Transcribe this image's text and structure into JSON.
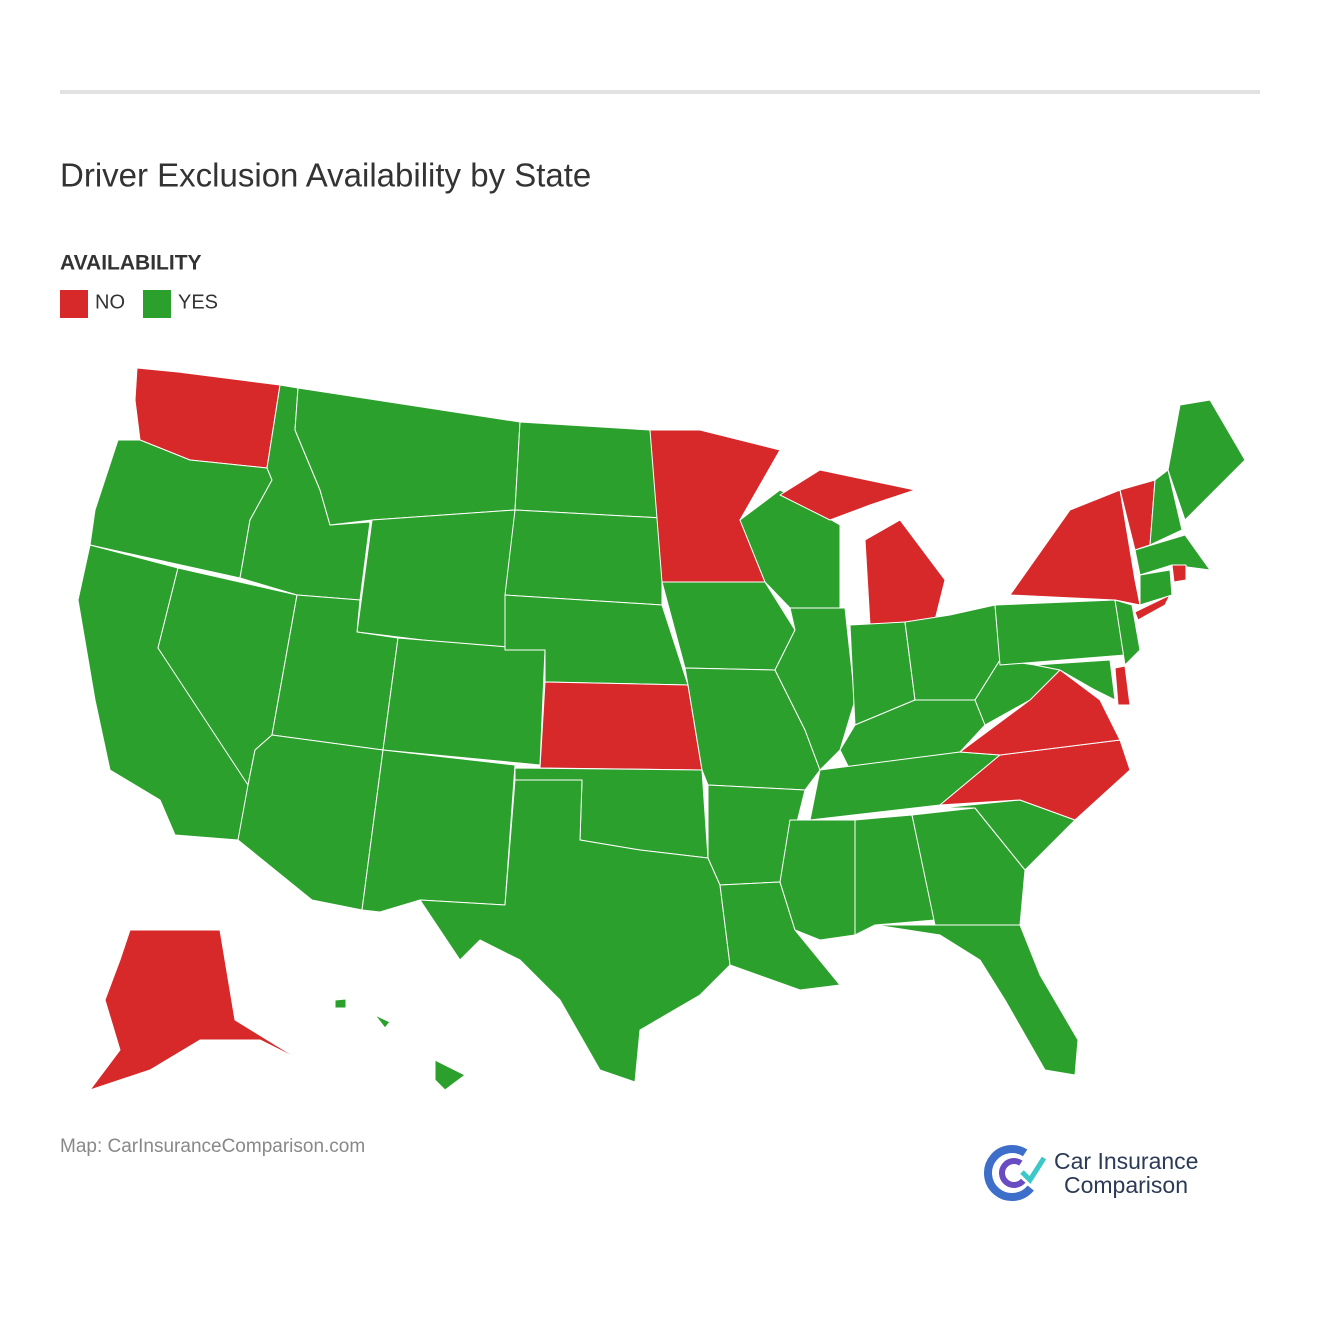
{
  "header": {
    "title": "Driver Exclusion Availability by State"
  },
  "legend": {
    "title": "AVAILABILITY",
    "items": [
      {
        "label": "NO",
        "color": "#d7282a"
      },
      {
        "label": "YES",
        "color": "#2ca02c"
      }
    ]
  },
  "map": {
    "regions": [
      "NO",
      "YES",
      "YES",
      "YES",
      "YES",
      "YES",
      "YES",
      "YES",
      "YES",
      "YES",
      "YES",
      "YES",
      "YES",
      "YES",
      "NO",
      "YES",
      "YES",
      "NO",
      "YES",
      "YES",
      "YES",
      "YES",
      "YES",
      "YES",
      "NO",
      "YES",
      "YES",
      "YES",
      "YES",
      "YES",
      "YES",
      "YES",
      "YES",
      "YES",
      "NO",
      "NO",
      "YES",
      "YES",
      "NO",
      "YES",
      "NO",
      "YES",
      "NO",
      "YES",
      "YES",
      "YES",
      "YES",
      "NO",
      "YES",
      "NO"
    ]
  },
  "footer": {
    "source": "Map: CarInsuranceComparison.com",
    "logo": [
      "Car Insurance",
      "Comparison"
    ]
  }
}
